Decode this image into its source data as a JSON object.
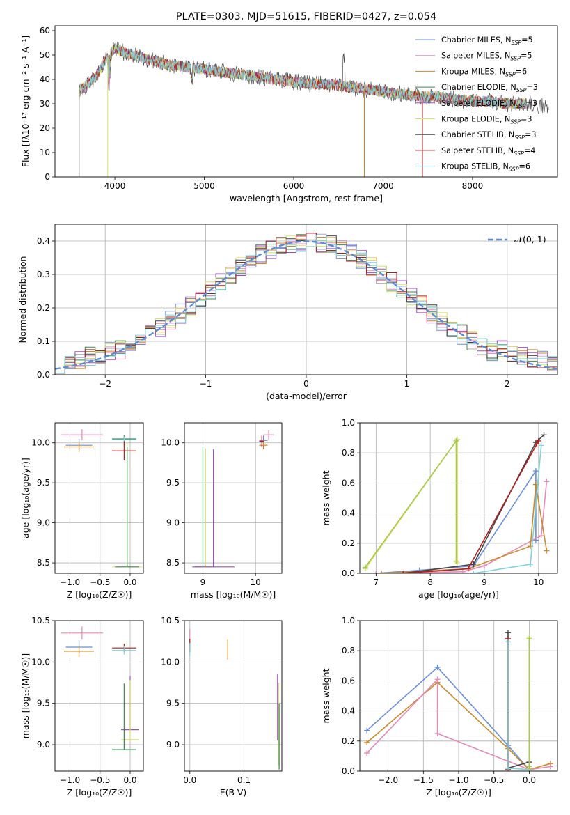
{
  "chart_data": [
    {
      "id": "spectrum",
      "type": "line",
      "title": "PLATE=0303, MJD=51615, FIBERID=0427, z=0.054",
      "xlabel": "wavelength [Angstrom, rest frame]",
      "ylabel": "Flux [fλ10⁻¹⁷ erg cm⁻² s⁻¹ A⁻¹]",
      "xlim": [
        3330,
        8950
      ],
      "ylim": [
        0,
        62
      ],
      "xticks": [
        4000,
        5000,
        6000,
        7000,
        8000
      ],
      "yticks": [
        0,
        10,
        20,
        30,
        40,
        50,
        60
      ],
      "grid": false,
      "legend_position": "top-right",
      "series": [
        {
          "name": "Chabrier MILES, N",
          "sub": "SSP",
          "tail": "=5",
          "color": "#6a8fd8"
        },
        {
          "name": "Salpeter MILES, N",
          "sub": "SSP",
          "tail": "=5",
          "color": "#e58ab7"
        },
        {
          "name": "Kroupa MILES, N",
          "sub": "SSP",
          "tail": "=6",
          "color": "#c98a2a"
        },
        {
          "name": "Chabrier ELODIE, N",
          "sub": "SSP",
          "tail": "=3",
          "color": "#3f8a4f"
        },
        {
          "name": "Salpeter ELODIE, N",
          "sub": "SSP",
          "tail": "=3",
          "color": "#a14bc1"
        },
        {
          "name": "Kroupa ELODIE, N",
          "sub": "SSP",
          "tail": "=3",
          "color": "#d8e06a"
        },
        {
          "name": "Chabrier STELIB, N",
          "sub": "SSP",
          "tail": "=3",
          "color": "#444444"
        },
        {
          "name": "Salpeter STELIB, N",
          "sub": "SSP",
          "tail": "=4",
          "color": "#b21e1e"
        },
        {
          "name": "Kroupa STELIB, N",
          "sub": "SSP",
          "tail": "=6",
          "color": "#7fd3dc"
        }
      ],
      "data_envelope": {
        "x": [
          3600,
          3700,
          3800,
          3900,
          4000,
          4100,
          4200,
          4300,
          4400,
          4600,
          4800,
          5000,
          5200,
          5400,
          5600,
          5800,
          6000,
          6200,
          6400,
          6600,
          6800,
          7000,
          7200,
          7400,
          7600,
          7800,
          8000,
          8200,
          8400,
          8600,
          8800
        ],
        "y": [
          35,
          38,
          42,
          48,
          53,
          51,
          50,
          49,
          48,
          46,
          45,
          44,
          43,
          42,
          41,
          40,
          39,
          38,
          38,
          37,
          36,
          35,
          34,
          33,
          33,
          32,
          31,
          31,
          30,
          30,
          29
        ]
      }
    },
    {
      "id": "residuals",
      "type": "line",
      "xlabel": "(data-model)/error",
      "ylabel": "Normed distribution",
      "xlim": [
        -2.5,
        2.5
      ],
      "ylim": [
        0,
        0.45
      ],
      "xticks": [
        -2,
        -1,
        0,
        1,
        2
      ],
      "yticks": [
        0.0,
        0.1,
        0.2,
        0.3,
        0.4
      ],
      "grid": true,
      "legend_position": "top-right",
      "legend_label": "𝒩(0, 1)",
      "gaussian_color": "#5b8ad6"
    },
    {
      "id": "age-vs-Z",
      "type": "scatter",
      "xlabel": "Z [log₁₀(Z/Z☉)]",
      "ylabel": "age  [log₁₀(age/yr)]",
      "xlim": [
        -1.25,
        0.22
      ],
      "ylim": [
        8.37,
        10.25
      ],
      "xticks": [
        -1.0,
        -0.5,
        0.0
      ],
      "yticks": [
        8.5,
        9.0,
        9.5,
        10.0
      ],
      "grid": true,
      "points": [
        {
          "x": -0.8,
          "y": 10.1,
          "xerr": 0.35,
          "yerr": 0.07,
          "color": "#e58ab7"
        },
        {
          "x": -0.85,
          "y": 9.97,
          "xerr": 0.22,
          "yerr": 0.08,
          "color": "#6a8fd8"
        },
        {
          "x": -0.85,
          "y": 9.95,
          "xerr": 0.25,
          "yerr": 0.06,
          "color": "#c98a2a"
        },
        {
          "x": -0.1,
          "y": 10.05,
          "xerr": 0.2,
          "yerr": 0.05,
          "color": "#3f8a4f"
        },
        {
          "x": -0.1,
          "y": 10.04,
          "xerr": 0.2,
          "yerr": 0.04,
          "color": "#7fd3dc"
        },
        {
          "x": -0.1,
          "y": 9.9,
          "xerr": 0.2,
          "yerr": 0.12,
          "color": "#b21e1e"
        },
        {
          "x": -0.05,
          "y": 8.45,
          "xerr": 0.25,
          "yerr": 1.55,
          "color": "#d8e06a"
        },
        {
          "x": -0.05,
          "y": 8.45,
          "xerr": 0.2,
          "yerr": 1.5,
          "color": "#3f8a4f"
        }
      ]
    },
    {
      "id": "age-vs-mass",
      "type": "scatter",
      "xlabel": "mass [log₁₀(M/M☉)]",
      "ylabel": "",
      "xlim": [
        8.65,
        10.5
      ],
      "ylim": [
        8.37,
        10.25
      ],
      "xticks": [
        9,
        10
      ],
      "yticks": [
        8.5,
        9.0,
        9.5,
        10.0
      ],
      "grid": true,
      "points": [
        {
          "x": 10.25,
          "y": 10.1,
          "xerr": 0.1,
          "yerr": 0.06,
          "color": "#e58ab7"
        },
        {
          "x": 10.15,
          "y": 10.03,
          "xerr": 0.08,
          "yerr": 0.06,
          "color": "#6a8fd8"
        },
        {
          "x": 10.15,
          "y": 9.97,
          "xerr": 0.08,
          "yerr": 0.05,
          "color": "#c98a2a"
        },
        {
          "x": 10.12,
          "y": 10.02,
          "xerr": 0.05,
          "yerr": 0.07,
          "color": "#b21e1e"
        },
        {
          "x": 9.0,
          "y": 8.45,
          "xerr": 0.15,
          "yerr": 1.5,
          "color": "#3f8a4f"
        },
        {
          "x": 9.05,
          "y": 8.45,
          "xerr": 0.15,
          "yerr": 1.48,
          "color": "#d8e06a"
        },
        {
          "x": 9.2,
          "y": 8.45,
          "xerr": 0.4,
          "yerr": 1.47,
          "color": "#a14bc1"
        }
      ]
    },
    {
      "id": "weight-vs-age",
      "type": "line",
      "xlabel": "age  [log₁₀(age/yr)]",
      "ylabel": "mass weight",
      "xlim": [
        6.7,
        10.35
      ],
      "ylim": [
        0,
        1.0
      ],
      "xticks": [
        7,
        8,
        9,
        10
      ],
      "yticks": [
        0.0,
        0.2,
        0.4,
        0.6,
        0.8,
        1.0
      ],
      "grid": true,
      "series": [
        {
          "color": "#d8e06a",
          "x": [
            6.8,
            8.5,
            8.5
          ],
          "y": [
            0.03,
            0.89,
            0.07
          ]
        },
        {
          "color": "#a8c94a",
          "x": [
            6.8,
            8.48,
            8.48
          ],
          "y": [
            0.04,
            0.88,
            0.08
          ]
        },
        {
          "color": "#6a8fd8",
          "x": [
            7.0,
            7.8,
            8.8,
            9.95,
            9.95
          ],
          "y": [
            0.0,
            0.02,
            0.05,
            0.68,
            0.22
          ]
        },
        {
          "color": "#e58ab7",
          "x": [
            7.0,
            8.6,
            9.0,
            10.05,
            10.15
          ],
          "y": [
            0.0,
            0.01,
            0.05,
            0.25,
            0.61
          ]
        },
        {
          "color": "#c98a2a",
          "x": [
            7.1,
            8.7,
            9.85,
            9.95,
            10.15
          ],
          "y": [
            0.0,
            0.03,
            0.18,
            0.59,
            0.15
          ]
        },
        {
          "color": "#444444",
          "x": [
            7.5,
            8.8,
            9.95,
            10.1
          ],
          "y": [
            0.0,
            0.06,
            0.87,
            0.92
          ]
        },
        {
          "color": "#b21e1e",
          "x": [
            7.5,
            8.7,
            9.97,
            10.0
          ],
          "y": [
            0.0,
            0.03,
            0.86,
            0.88
          ]
        },
        {
          "color": "#7fd3dc",
          "x": [
            8.8,
            9.85,
            10.05
          ],
          "y": [
            0.0,
            0.06,
            0.85
          ]
        }
      ]
    },
    {
      "id": "mass-vs-Z",
      "type": "scatter",
      "xlabel": "Z [log₁₀(Z/Z☉)]",
      "ylabel": "mass [log₁₀(M/M☉)]",
      "xlim": [
        -1.25,
        0.22
      ],
      "ylim": [
        8.68,
        10.5
      ],
      "xticks": [
        -1.0,
        -0.5,
        0.0
      ],
      "yticks": [
        9.0,
        9.5,
        10.0,
        10.5
      ],
      "grid": true,
      "points": [
        {
          "x": -0.8,
          "y": 10.35,
          "xerr": 0.35,
          "yerr": 0.08,
          "color": "#e58ab7"
        },
        {
          "x": -0.85,
          "y": 10.18,
          "xerr": 0.22,
          "yerr": 0.08,
          "color": "#6a8fd8"
        },
        {
          "x": -0.85,
          "y": 10.13,
          "xerr": 0.25,
          "yerr": 0.07,
          "color": "#c98a2a"
        },
        {
          "x": -0.1,
          "y": 10.17,
          "xerr": 0.2,
          "yerr": 0.05,
          "color": "#b21e1e"
        },
        {
          "x": -0.1,
          "y": 10.14,
          "xerr": 0.2,
          "yerr": 0.05,
          "color": "#7fd3dc"
        },
        {
          "x": 0.0,
          "y": 9.18,
          "xerr": 0.15,
          "yerr": 0.65,
          "color": "#a14bc1"
        },
        {
          "x": 0.0,
          "y": 9.06,
          "xerr": 0.15,
          "yerr": 0.72,
          "color": "#d8e06a"
        },
        {
          "x": -0.1,
          "y": 8.94,
          "xerr": 0.2,
          "yerr": 0.8,
          "color": "#3f8a4f"
        }
      ]
    },
    {
      "id": "mass-vs-EBV",
      "type": "scatter",
      "xlabel": "E(B-V)",
      "ylabel": "",
      "xlim": [
        -0.01,
        0.17
      ],
      "ylim": [
        8.68,
        10.5
      ],
      "xticks": [
        0.0,
        0.1
      ],
      "yticks": [
        9.0,
        9.5,
        10.0,
        10.5
      ],
      "grid": true,
      "points": [
        {
          "x": 0.0,
          "y": 10.3,
          "yerr": 0.1,
          "color": "#e58ab7"
        },
        {
          "x": 0.0,
          "y": 10.2,
          "yerr": 0.08,
          "color": "#b21e1e"
        },
        {
          "x": 0.0,
          "y": 10.15,
          "yerr": 0.08,
          "color": "#7fd3dc"
        },
        {
          "x": 0.07,
          "y": 10.15,
          "yerr": 0.12,
          "color": "#c98a2a"
        },
        {
          "x": 0.162,
          "y": 9.45,
          "yerr": 0.4,
          "color": "#a14bc1"
        },
        {
          "x": 0.164,
          "y": 9.25,
          "yerr": 0.5,
          "color": "#d8e06a"
        },
        {
          "x": 0.165,
          "y": 9.1,
          "yerr": 0.4,
          "color": "#3f8a4f"
        }
      ]
    },
    {
      "id": "weight-vs-Z",
      "type": "line",
      "xlabel": "Z [log₁₀(Z/Z☉)]",
      "ylabel": "mass weight",
      "xlim": [
        -2.4,
        0.4
      ],
      "ylim": [
        0,
        1.0
      ],
      "xticks": [
        -2.0,
        -1.5,
        -1.0,
        -0.5,
        0.0
      ],
      "yticks": [
        0.0,
        0.2,
        0.4,
        0.6,
        0.8,
        1.0
      ],
      "grid": true,
      "series": [
        {
          "color": "#6a8fd8",
          "x": [
            -2.3,
            -1.3,
            -0.3,
            0.0
          ],
          "y": [
            0.27,
            0.69,
            0.17,
            0.01
          ]
        },
        {
          "color": "#c98a2a",
          "x": [
            -2.3,
            -1.3,
            -0.3,
            0.0,
            0.3
          ],
          "y": [
            0.19,
            0.59,
            0.15,
            0.01,
            0.05
          ]
        },
        {
          "color": "#e58ab7",
          "x": [
            -2.3,
            -1.3,
            -1.3,
            0.0,
            0.3
          ],
          "y": [
            0.12,
            0.61,
            0.25,
            0.01,
            0.03
          ]
        },
        {
          "color": "#444444",
          "x": [
            -0.3,
            -0.3,
            0.0
          ],
          "y": [
            0.92,
            0.02,
            0.06
          ]
        },
        {
          "color": "#b21e1e",
          "x": [
            -0.3,
            -0.3
          ],
          "y": [
            0.88,
            0.01
          ]
        },
        {
          "color": "#7fd3dc",
          "x": [
            -0.3,
            -0.3,
            0.0
          ],
          "y": [
            0.86,
            0.02,
            0.01
          ]
        },
        {
          "color": "#d8e06a",
          "x": [
            0.0,
            0.0
          ],
          "y": [
            0.89,
            0.02
          ]
        },
        {
          "color": "#a8c94a",
          "x": [
            0.0,
            0.0
          ],
          "y": [
            0.88,
            0.03
          ]
        }
      ]
    }
  ]
}
